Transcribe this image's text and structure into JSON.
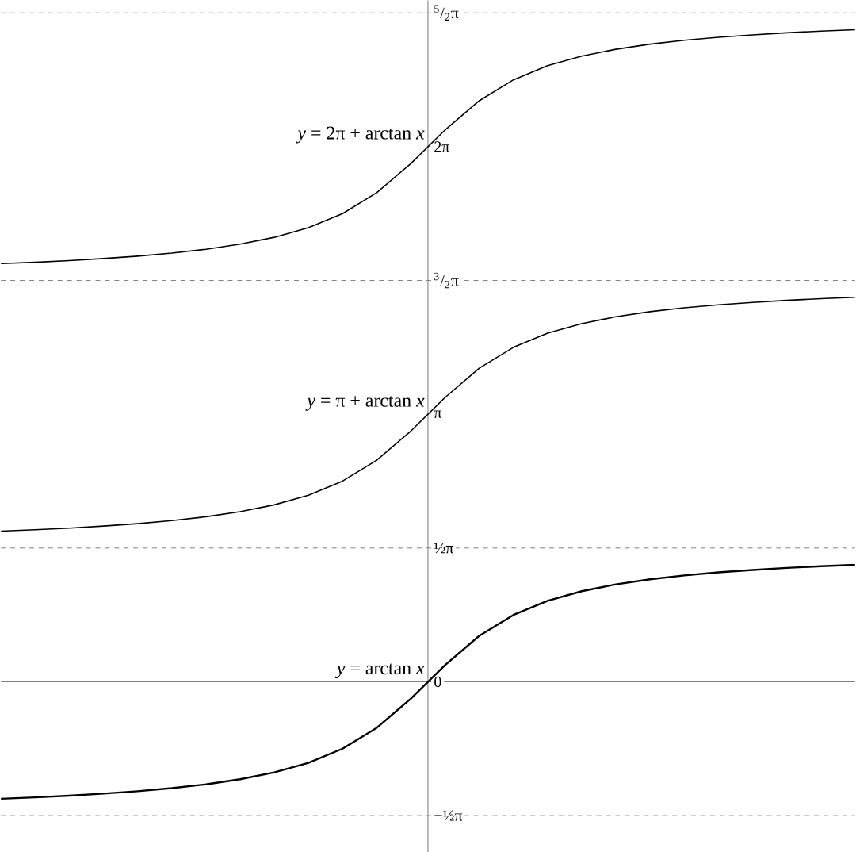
{
  "chart_data": {
    "type": "line",
    "categories": [
      null,
      null,
      null,
      null,
      null,
      null,
      null,
      null,
      null,
      null,
      null,
      null,
      null,
      null,
      null,
      null,
      null,
      null,
      null,
      null,
      null,
      null,
      null,
      null,
      null,
      null
    ],
    "series": [
      {
        "color": "#000000",
        "values": [
          -1.373,
          -1.357,
          -1.337,
          -1.313,
          -1.285,
          -1.249,
          -1.204,
          -1.144,
          -1.064,
          -0.951,
          -0.785,
          -0.54,
          -0.197,
          0.197,
          0.54,
          0.785,
          0.951,
          1.064,
          1.144,
          1.204,
          1.249,
          1.285,
          1.313,
          1.337,
          1.357,
          1.373
        ]
      },
      {
        "color": "#000000",
        "values": [
          1.769,
          1.785,
          1.805,
          1.829,
          1.857,
          1.893,
          1.938,
          1.998,
          2.078,
          2.191,
          2.357,
          2.602,
          2.945,
          3.339,
          3.682,
          3.927,
          4.093,
          4.206,
          4.286,
          4.346,
          4.391,
          4.427,
          4.455,
          4.479,
          4.499,
          4.515
        ]
      },
      {
        "color": "#000000",
        "values": [
          4.91,
          4.926,
          4.946,
          4.97,
          4.998,
          5.034,
          5.079,
          5.139,
          5.219,
          5.332,
          5.498,
          5.743,
          6.086,
          6.48,
          6.823,
          7.068,
          7.234,
          7.347,
          7.427,
          7.487,
          7.532,
          7.568,
          7.596,
          7.62,
          7.64,
          7.656
        ]
      }
    ],
    "ylim": [
      -2,
      8
    ],
    "yticks": [
      {
        "value": -1.5708,
        "label": "−½π"
      },
      {
        "value": 0,
        "label": "0"
      },
      {
        "value": 1.5708,
        "label": "½π"
      },
      {
        "value": 3.1416,
        "label": "π"
      },
      {
        "value": 4.7124,
        "label": "$^{3}$/$_{2}$π"
      },
      {
        "value": 6.2832,
        "label": "2π"
      },
      {
        "value": 7.854,
        "label": "$^{5}$/$_{2}$π"
      }
    ],
    "tick_labels": "y",
    "ref_lines": [
      {
        "axis": "y",
        "value": -1.5708,
        "color": "#808080",
        "line_style": "dashed"
      },
      {
        "axis": "y",
        "value": 1.5708,
        "color": "#808080",
        "line_style": "dashed"
      },
      {
        "axis": "y",
        "value": 4.7124,
        "color": "#808080",
        "line_style": "dashed"
      },
      {
        "axis": "y",
        "value": 7.854,
        "color": "#808080",
        "line_style": "dashed"
      }
    ],
    "annotations": [
      "*y* = arctan *x*",
      "*y* = π + arctan *x*",
      "*y* = 2π + arctan *x*"
    ],
    "grid": false,
    "marker": "none",
    "line_style": "solid"
  }
}
